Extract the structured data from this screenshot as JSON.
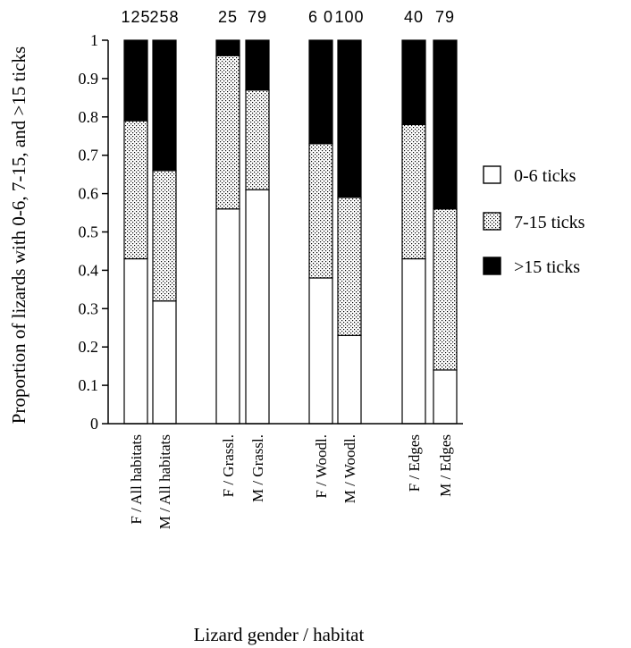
{
  "chart_data": {
    "type": "bar",
    "stacked": true,
    "xlabel": "Lizard gender / habitat",
    "ylabel": "Proportion of lizards with 0-6, 7-15, and >15 ticks",
    "ylim": [
      0,
      1
    ],
    "yticks": [
      "0",
      "0.1",
      "0.2",
      "0.3",
      "0.4",
      "0.5",
      "0.6",
      "0.7",
      "0.8",
      "0.9",
      "1"
    ],
    "categories": [
      "F / All habitats",
      "M / All habitats",
      "F / Grassl.",
      "M / Grassl.",
      "F / Woodl.",
      "M / Woodl.",
      "F / Edges",
      "M / Edges"
    ],
    "sample_sizes": [
      "125",
      "258",
      "25",
      "79",
      "6 0",
      "100",
      "40",
      "79"
    ],
    "series": [
      {
        "name": "0-6 ticks",
        "pattern": "white",
        "values": [
          0.43,
          0.32,
          0.56,
          0.61,
          0.38,
          0.23,
          0.43,
          0.14
        ]
      },
      {
        "name": "7-15 ticks",
        "pattern": "stipple",
        "values": [
          0.36,
          0.34,
          0.4,
          0.26,
          0.35,
          0.36,
          0.35,
          0.42
        ]
      },
      {
        "name": ">15 ticks",
        "pattern": "black",
        "values": [
          0.21,
          0.34,
          0.04,
          0.13,
          0.27,
          0.41,
          0.22,
          0.44
        ]
      }
    ],
    "legend_position": "right",
    "grid": false,
    "colors": {
      "fill_white": "#ffffff",
      "fill_black": "#000000",
      "stipple_dot": "#000000",
      "stroke": "#000000"
    }
  }
}
